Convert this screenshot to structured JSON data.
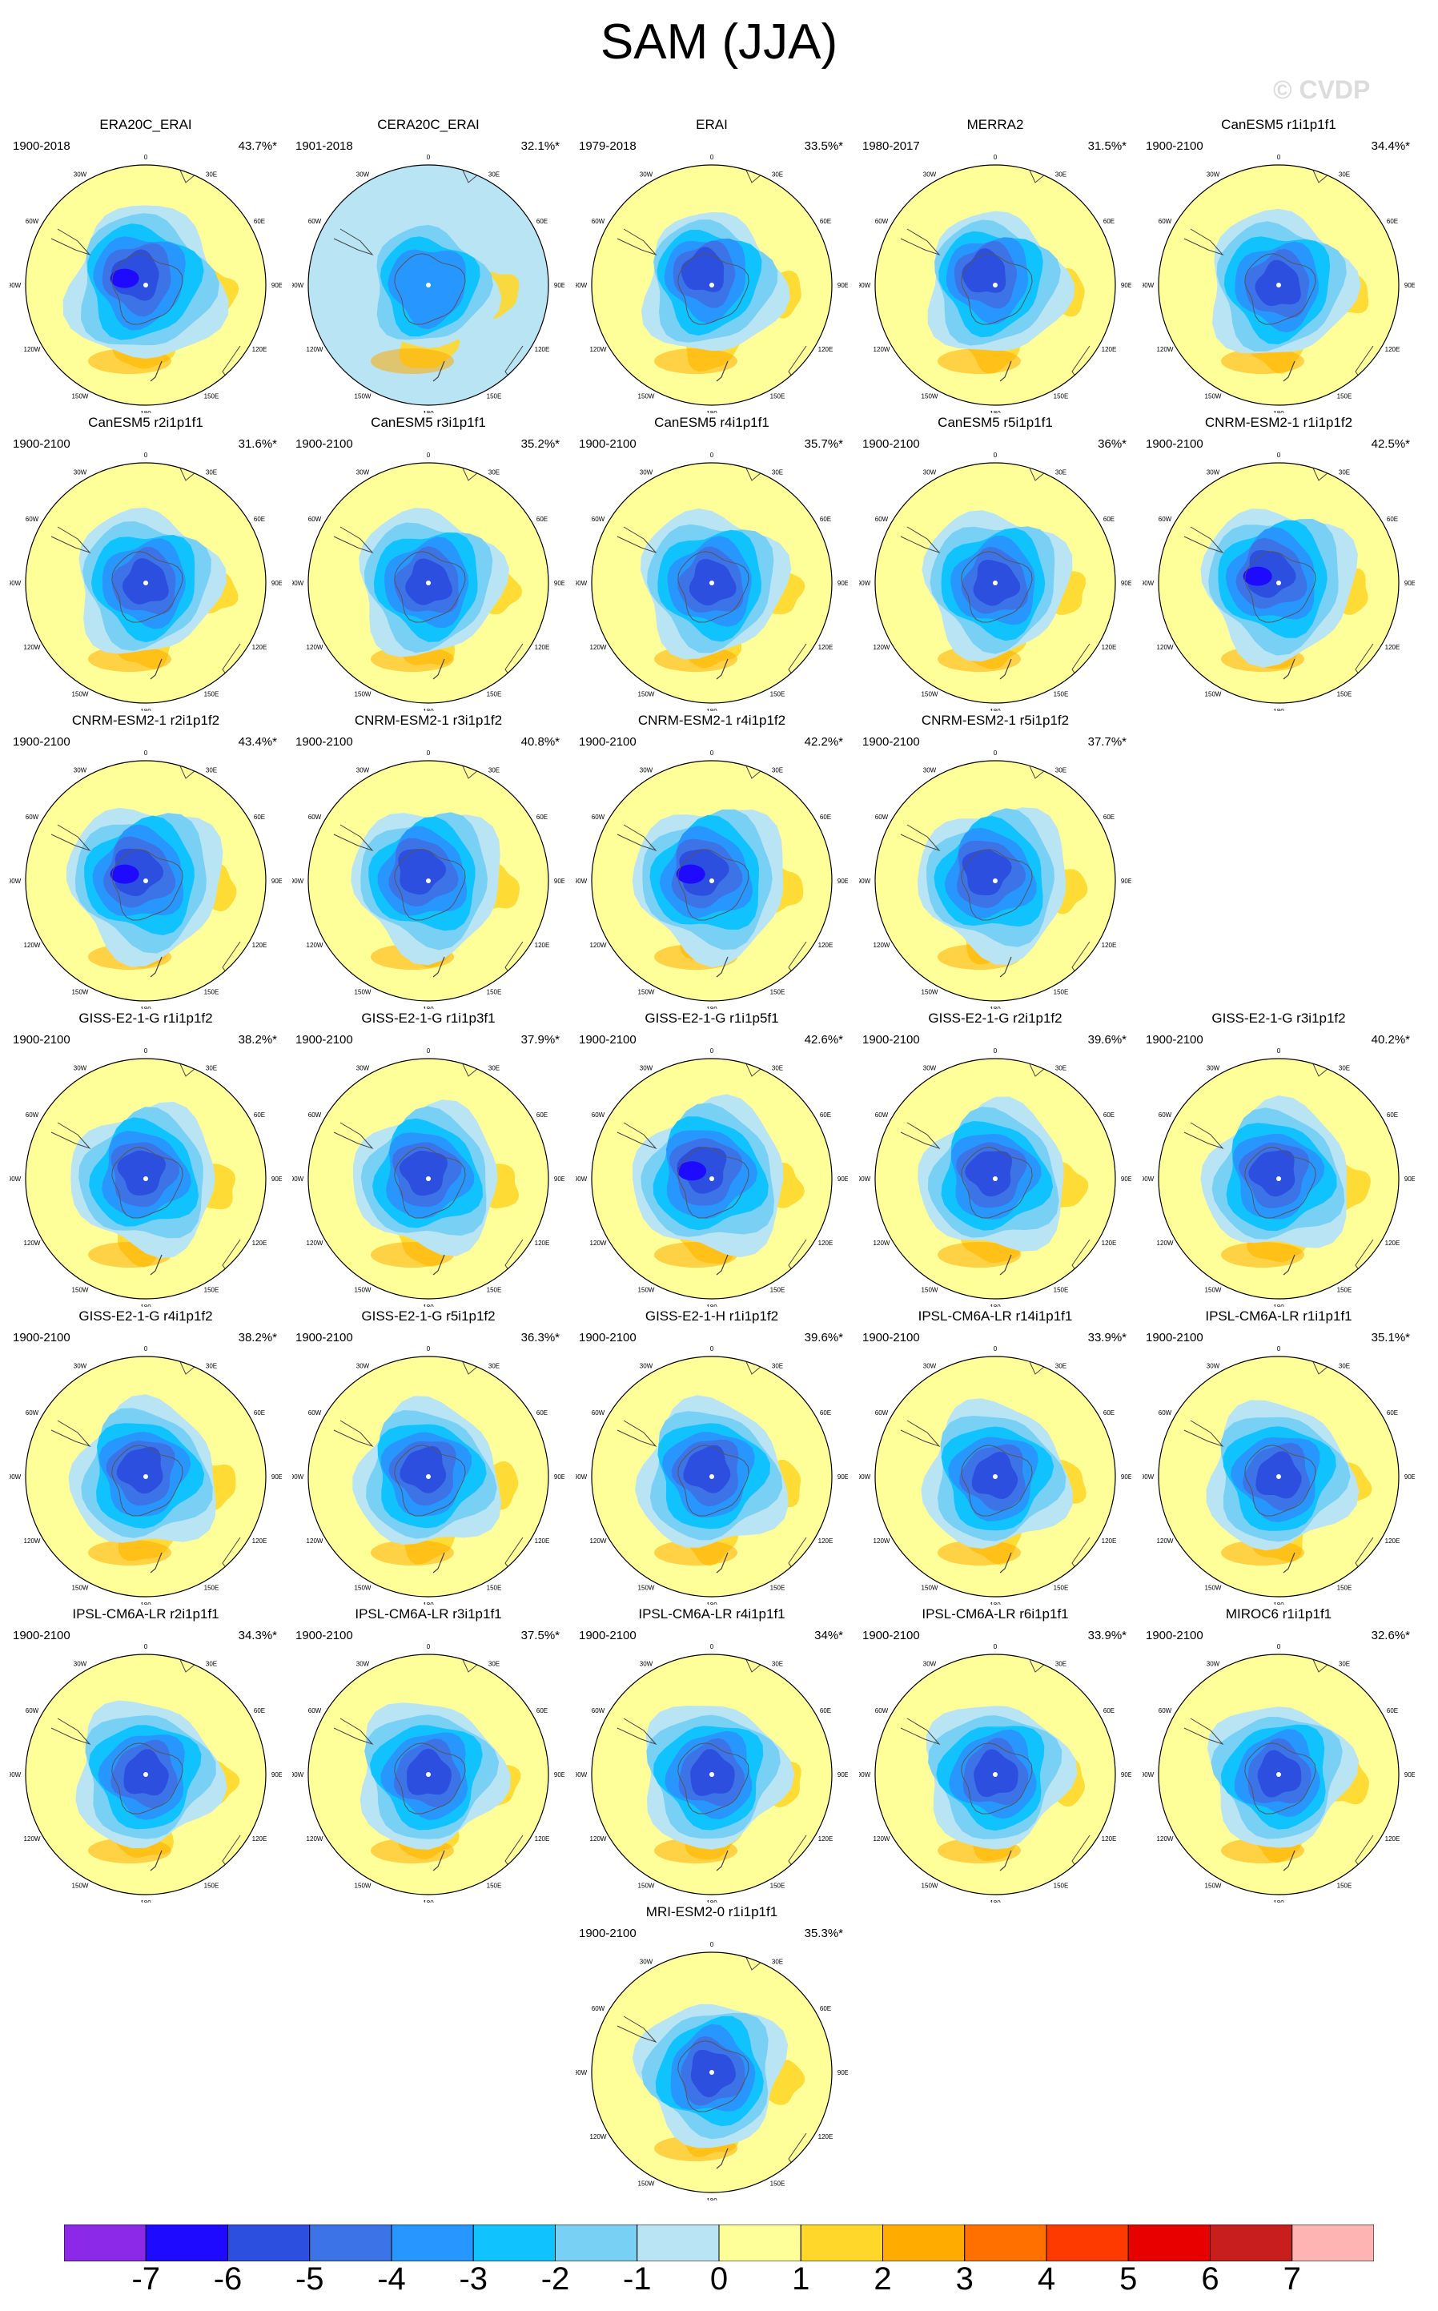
{
  "title": "SAM (JJA)",
  "watermark": "© CVDP",
  "panels": [
    {
      "name": "ERA20C_ERAI",
      "years": "1900-2018",
      "pct": "43.7%*",
      "v": 1.0,
      "lon": -45,
      "lat": 0.05,
      "bg": 0
    },
    {
      "name": "CERA20C_ERAI",
      "years": "1901-2018",
      "pct": "32.1%*",
      "v": 0.55,
      "lon": 0,
      "lat": 0.0,
      "bg": 1
    },
    {
      "name": "ERAI",
      "years": "1979-2018",
      "pct": "33.5%*",
      "v": 0.7,
      "lon": -30,
      "lat": 0.06,
      "bg": 0
    },
    {
      "name": "MERRA2",
      "years": "1980-2017",
      "pct": "31.5%*",
      "v": 0.72,
      "lon": -40,
      "lat": 0.06,
      "bg": 0
    },
    {
      "name": "CanESM5 r1i1p1f1",
      "years": "1900-2100",
      "pct": "34.4%*",
      "v": 0.8,
      "lon": 0,
      "lat": 0.0,
      "bg": 0
    },
    {
      "name": "CanESM5 r2i1p1f1",
      "years": "1900-2100",
      "pct": "31.6%*",
      "v": 0.78,
      "lon": 0,
      "lat": 0.0,
      "bg": 0
    },
    {
      "name": "CanESM5 r3i1p1f1",
      "years": "1900-2100",
      "pct": "35.2%*",
      "v": 0.8,
      "lon": 0,
      "lat": 0.0,
      "bg": 0
    },
    {
      "name": "CanESM5 r4i1p1f1",
      "years": "1900-2100",
      "pct": "35.7%*",
      "v": 0.8,
      "lon": 0,
      "lat": 0.0,
      "bg": 0
    },
    {
      "name": "CanESM5 r5i1p1f1",
      "years": "1900-2100",
      "pct": "36%*",
      "v": 0.8,
      "lon": 0,
      "lat": 0.0,
      "bg": 0
    },
    {
      "name": "CNRM-ESM2-1 r1i1p1f2",
      "years": "1900-2100",
      "pct": "42.5%*",
      "v": 0.95,
      "lon": -45,
      "lat": 0.05,
      "bg": 0
    },
    {
      "name": "CNRM-ESM2-1 r2i1p1f2",
      "years": "1900-2100",
      "pct": "43.4%*",
      "v": 0.98,
      "lon": -45,
      "lat": 0.05,
      "bg": 0
    },
    {
      "name": "CNRM-ESM2-1 r3i1p1f2",
      "years": "1900-2100",
      "pct": "40.8%*",
      "v": 0.88,
      "lon": -40,
      "lat": 0.05,
      "bg": 0
    },
    {
      "name": "CNRM-ESM2-1 r4i1p1f2",
      "years": "1900-2100",
      "pct": "42.2%*",
      "v": 0.95,
      "lon": -45,
      "lat": 0.05,
      "bg": 0
    },
    {
      "name": "CNRM-ESM2-1 r5i1p1f2",
      "years": "1900-2100",
      "pct": "37.7%*",
      "v": 0.9,
      "lon": -45,
      "lat": 0.05,
      "bg": 0
    },
    null,
    {
      "name": "GISS-E2-1-G r1i1p1f2",
      "years": "1900-2100",
      "pct": "38.2%*",
      "v": 0.82,
      "lon": -30,
      "lat": 0.03,
      "bg": 0
    },
    {
      "name": "GISS-E2-1-G r1i1p3f1",
      "years": "1900-2100",
      "pct": "37.9%*",
      "v": 0.82,
      "lon": -30,
      "lat": 0.03,
      "bg": 0
    },
    {
      "name": "GISS-E2-1-G r1i1p5f1",
      "years": "1900-2100",
      "pct": "42.6%*",
      "v": 0.95,
      "lon": -40,
      "lat": 0.05,
      "bg": 0
    },
    {
      "name": "GISS-E2-1-G r2i1p1f2",
      "years": "1900-2100",
      "pct": "39.6%*",
      "v": 0.85,
      "lon": -35,
      "lat": 0.03,
      "bg": 0
    },
    {
      "name": "GISS-E2-1-G r3i1p1f2",
      "years": "1900-2100",
      "pct": "40.2%*",
      "v": 0.85,
      "lon": -35,
      "lat": 0.03,
      "bg": 0
    },
    {
      "name": "GISS-E2-1-G r4i1p1f2",
      "years": "1900-2100",
      "pct": "38.2%*",
      "v": 0.82,
      "lon": -30,
      "lat": 0.03,
      "bg": 0
    },
    {
      "name": "GISS-E2-1-G r5i1p1f2",
      "years": "1900-2100",
      "pct": "36.3%*",
      "v": 0.8,
      "lon": -30,
      "lat": 0.03,
      "bg": 0
    },
    {
      "name": "GISS-E2-1-H r1i1p1f2",
      "years": "1900-2100",
      "pct": "39.6%*",
      "v": 0.85,
      "lon": -30,
      "lat": 0.03,
      "bg": 0
    },
    {
      "name": "IPSL-CM6A-LR r14i1p1f1",
      "years": "1900-2100",
      "pct": "33.9%*",
      "v": 0.8,
      "lon": 0,
      "lat": 0.0,
      "bg": 0
    },
    {
      "name": "IPSL-CM6A-LR r1i1p1f1",
      "years": "1900-2100",
      "pct": "35.1%*",
      "v": 0.82,
      "lon": 0,
      "lat": 0.0,
      "bg": 0
    },
    {
      "name": "IPSL-CM6A-LR r2i1p1f1",
      "years": "1900-2100",
      "pct": "34.3%*",
      "v": 0.8,
      "lon": 0,
      "lat": 0.0,
      "bg": 0
    },
    {
      "name": "IPSL-CM6A-LR r3i1p1f1",
      "years": "1900-2100",
      "pct": "37.5%*",
      "v": 0.82,
      "lon": 0,
      "lat": 0.0,
      "bg": 0
    },
    {
      "name": "IPSL-CM6A-LR r4i1p1f1",
      "years": "1900-2100",
      "pct": "34%*",
      "v": 0.8,
      "lon": 0,
      "lat": 0.0,
      "bg": 0
    },
    {
      "name": "IPSL-CM6A-LR r6i1p1f1",
      "years": "1900-2100",
      "pct": "33.9%*",
      "v": 0.8,
      "lon": 0,
      "lat": 0.0,
      "bg": 0
    },
    {
      "name": "MIROC6 r1i1p1f1",
      "years": "1900-2100",
      "pct": "32.6%*",
      "v": 0.75,
      "lon": 0,
      "lat": 0.0,
      "bg": 0
    },
    null,
    null,
    {
      "name": "MRI-ESM2-0 r1i1p1f1",
      "years": "1900-2100",
      "pct": "35.3%*",
      "v": 0.8,
      "lon": 0,
      "lat": 0.0,
      "bg": 0
    },
    null,
    null
  ],
  "map_labels": [
    "0",
    "30E",
    "60E",
    "90E",
    "120E",
    "150E",
    "180",
    "150W",
    "120W",
    "90W",
    "60W",
    "30W"
  ],
  "colorbar": {
    "colors": [
      "#8c28e8",
      "#1e0aff",
      "#2c4fe0",
      "#3c74e8",
      "#2896ff",
      "#10c3ff",
      "#78d0f4",
      "#b8e4f4",
      "#ffff9a",
      "#ffd72a",
      "#ffab00",
      "#ff7000",
      "#ff3a00",
      "#e80000",
      "#c81e1e",
      "#ffb4b4"
    ],
    "labels": [
      "-7",
      "-6",
      "-5",
      "-4",
      "-3",
      "-2",
      "-1",
      "0",
      "1",
      "2",
      "3",
      "4",
      "5",
      "6",
      "7"
    ]
  }
}
